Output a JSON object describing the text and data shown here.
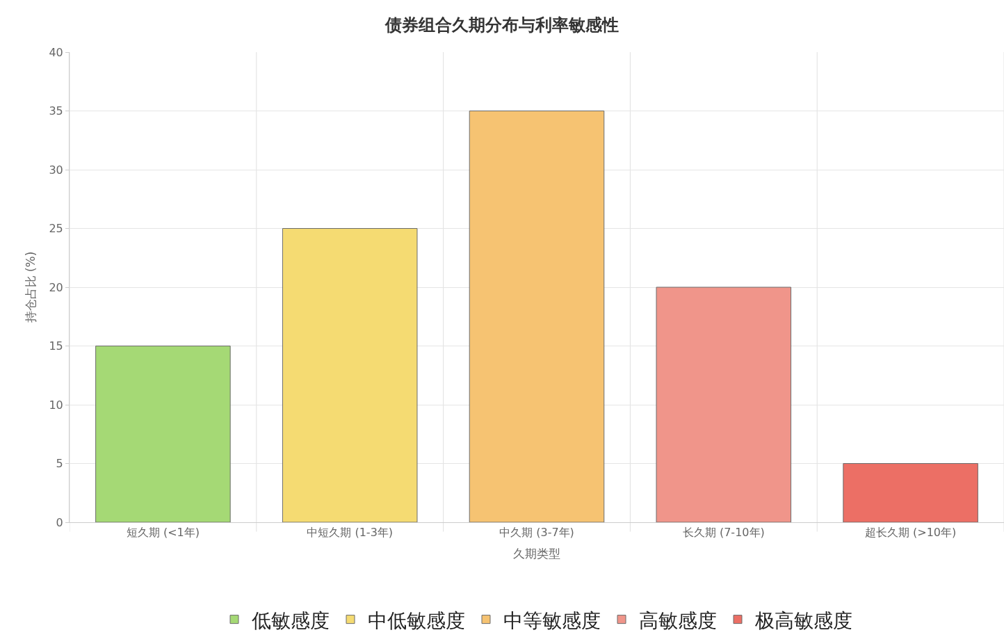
{
  "chart_data": {
    "type": "bar",
    "title": "债券组合久期分布与利率敏感性",
    "xlabel": "久期类型",
    "ylabel": "持仓占比 (%)",
    "categories": [
      "短久期 (<1年)",
      "中短久期 (1-3年)",
      "中久期 (3-7年)",
      "长久期 (7-10年)",
      "超长久期 (>10年)"
    ],
    "series": [
      {
        "name": "低敏感度",
        "color": "#a5d975",
        "values": [
          15,
          null,
          null,
          null,
          null
        ]
      },
      {
        "name": "中低敏感度",
        "color": "#f5db72",
        "values": [
          null,
          25,
          null,
          null,
          null
        ]
      },
      {
        "name": "中等敏感度",
        "color": "#f6c372",
        "values": [
          null,
          null,
          35,
          null,
          null
        ]
      },
      {
        "name": "高敏感度",
        "color": "#f0958a",
        "values": [
          null,
          null,
          null,
          20,
          null
        ]
      },
      {
        "name": "极高敏感度",
        "color": "#ec6f65",
        "values": [
          null,
          null,
          null,
          null,
          5
        ]
      }
    ],
    "ylim": [
      0,
      40
    ],
    "yticks": [
      0,
      5,
      10,
      15,
      20,
      25,
      30,
      35,
      40
    ],
    "grid": true,
    "legend": "bottom"
  }
}
